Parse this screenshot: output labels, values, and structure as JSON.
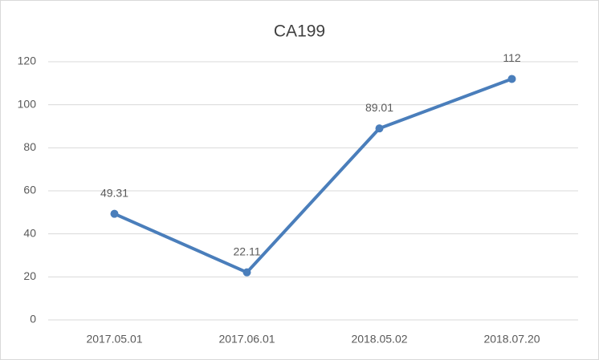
{
  "chart_data": {
    "type": "line",
    "title": "CA199",
    "categories": [
      "2017.05.01",
      "2017.06.01",
      "2018.05.02",
      "2018.07.20"
    ],
    "series": [
      {
        "color": "#4a7ebb",
        "values": [
          49.31,
          22.11,
          89.01,
          112
        ]
      }
    ],
    "ylim": [
      0,
      120
    ],
    "yticks": [
      0,
      20,
      40,
      60,
      80,
      100,
      120
    ],
    "grid": true,
    "data_labels": true
  }
}
